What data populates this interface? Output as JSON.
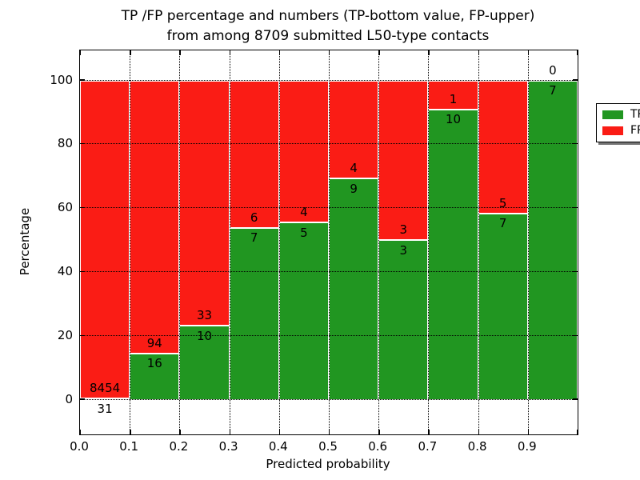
{
  "figure": {
    "title_line1": "TP /FP percentage and numbers (TP-bottom value, FP-upper)",
    "title_line2": "from among 8709 submitted L50-type contacts",
    "xlabel": "Predicted probability",
    "ylabel": "Percentage"
  },
  "legend": {
    "position": "upper-right",
    "items": [
      {
        "label": "TP",
        "color": "#219621"
      },
      {
        "label": "FP",
        "color": "#FA1C15"
      }
    ]
  },
  "chart_data": {
    "type": "bar",
    "variant": "stacked-percentage-histogram",
    "title": "TP /FP percentage and numbers (TP-bottom value, FP-upper) from among 8709 submitted L50-type contacts",
    "xlabel": "Predicted probability",
    "ylabel": "Percentage",
    "total_submitted": 8709,
    "bin_width": 0.1,
    "categories": [
      "0.0-0.1",
      "0.1-0.2",
      "0.2-0.3",
      "0.3-0.4",
      "0.4-0.5",
      "0.5-0.6",
      "0.6-0.7",
      "0.7-0.8",
      "0.8-0.9",
      "0.9-1.0"
    ],
    "series": [
      {
        "name": "TP",
        "color": "#219621",
        "counts": [
          31,
          16,
          10,
          7,
          5,
          9,
          3,
          10,
          7,
          7
        ]
      },
      {
        "name": "FP",
        "color": "#FA1C15",
        "counts": [
          8454,
          94,
          33,
          6,
          4,
          4,
          3,
          1,
          5,
          0
        ]
      }
    ],
    "tp_percent_of_bin": [
      0.37,
      14.55,
      23.26,
      53.85,
      55.56,
      69.23,
      50.0,
      90.91,
      58.33,
      100.0
    ],
    "x_tick_labels": [
      "0.0",
      "0.1",
      "0.2",
      "0.3",
      "0.4",
      "0.5",
      "0.6",
      "0.7",
      "0.8",
      "0.9"
    ],
    "y_ticks": [
      0,
      20,
      40,
      60,
      80,
      100
    ],
    "y_tick_labels": [
      "0",
      "20",
      "40",
      "60",
      "80",
      "100"
    ],
    "xlim": [
      0.0,
      1.0
    ],
    "ylim": [
      -10.8,
      109.4
    ],
    "grid": "dotted-on-top",
    "legend_position": "upper right"
  }
}
